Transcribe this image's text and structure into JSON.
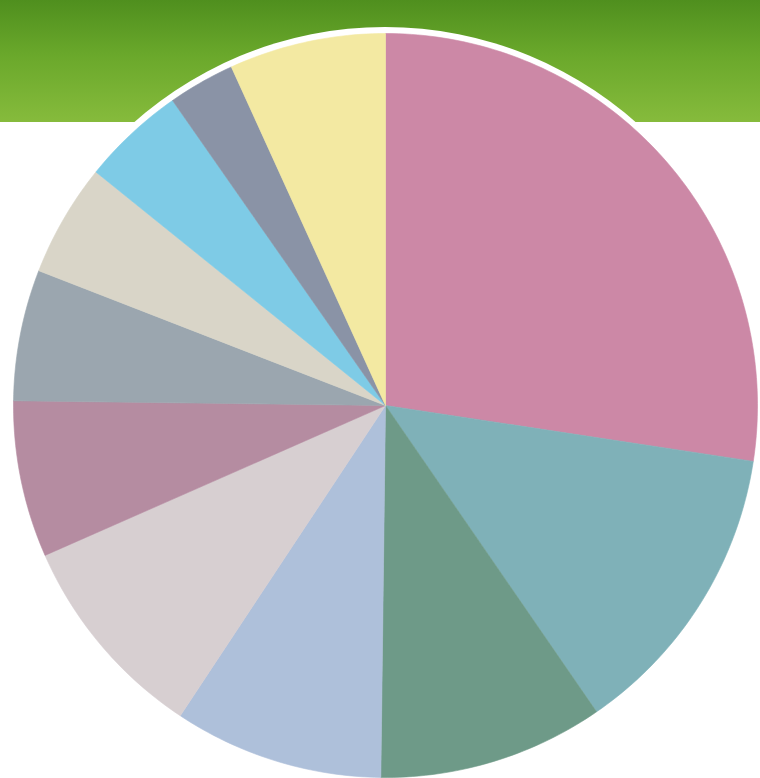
{
  "chart_data": {
    "type": "pie",
    "categories": [
      null,
      null,
      null,
      null,
      null,
      null,
      null,
      null,
      null,
      null,
      null
    ],
    "values": [
      27.4,
      13,
      9.8,
      9.1,
      9.1,
      6.8,
      5.7,
      4.9,
      4.5,
      2.9,
      6.8
    ],
    "colors": [
      "#cc88a6",
      "#7fb1b8",
      "#6e9a88",
      "#aec0da",
      "#d7cfd1",
      "#b58ca1",
      "#9ba6af",
      "#d9d5c8",
      "#7ecbe6",
      "#8a93a6",
      "#f3e9a2"
    ],
    "tick_labels": false
  }
}
